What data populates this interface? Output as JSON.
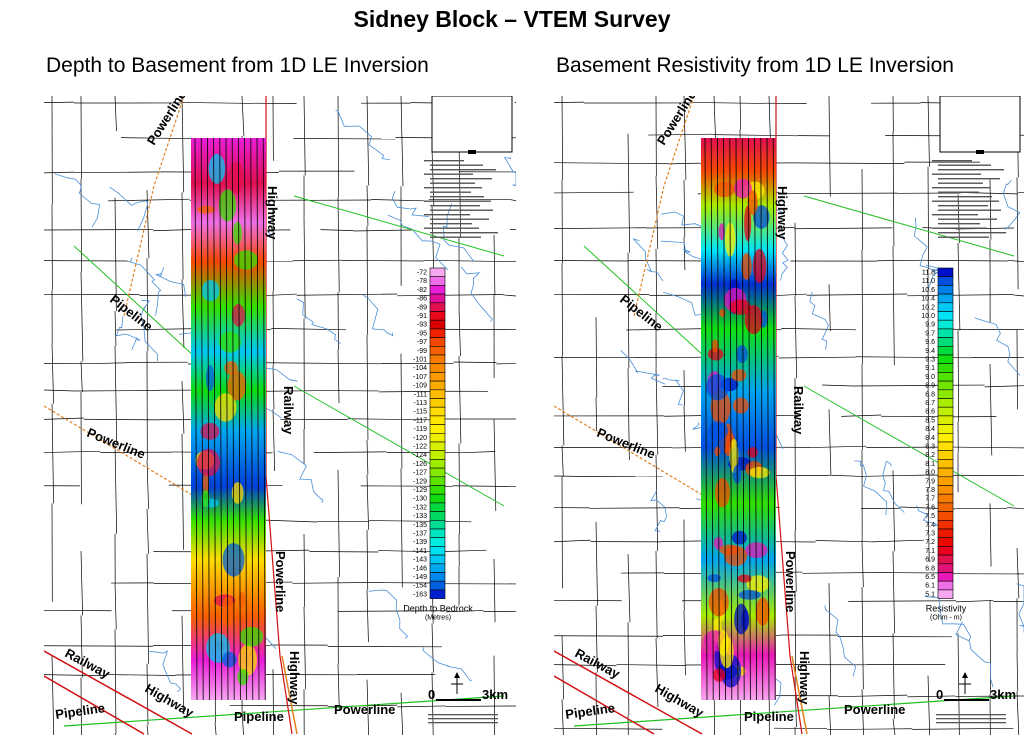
{
  "title": "Sidney Block – VTEM Survey",
  "panels": [
    {
      "subtitle": "Depth to Basement from 1D LE Inversion",
      "legend_title": "Depth to Bedrock",
      "legend_units": "(Metres)",
      "legend_values": [
        "-72",
        "-78",
        "-82",
        "-86",
        "-89",
        "-91",
        "-93",
        "-95",
        "-97",
        "-99",
        "-101",
        "-104",
        "-107",
        "-109",
        "-111",
        "-113",
        "-115",
        "-117",
        "-119",
        "-120",
        "-122",
        "-124",
        "-126",
        "-127",
        "-129",
        "-129",
        "-130",
        "-132",
        "-133",
        "-135",
        "-137",
        "-139",
        "-141",
        "-143",
        "-146",
        "-149",
        "-154",
        "-163"
      ],
      "legend_colors": [
        "#f7a8f0",
        "#f06fe8",
        "#e81ed8",
        "#e0109a",
        "#e01050",
        "#e8081c",
        "#d80000",
        "#f02000",
        "#f44800",
        "#f66000",
        "#f67a00",
        "#f88a00",
        "#fa9a00",
        "#fbab00",
        "#fcbb00",
        "#fdcc00",
        "#fedc00",
        "#ffe800",
        "#fff000",
        "#eef000",
        "#d8f000",
        "#bef000",
        "#a0ec00",
        "#84e800",
        "#5ce400",
        "#34e000",
        "#10dc10",
        "#00d840",
        "#00d860",
        "#00dc90",
        "#00e4c0",
        "#00ecdc",
        "#00e0f0",
        "#00c8f4",
        "#00a8f0",
        "#0088ec",
        "#0060e0",
        "#0020d0"
      ],
      "scale_zero": "0",
      "scale_label": "3km",
      "map_labels": [
        "Powerline",
        "Highway",
        "Pipeline",
        "Powerline",
        "Railway",
        "Powerline",
        "Highway",
        "Railway",
        "Highway",
        "Pipeline",
        "Pipeline",
        "Powerline"
      ]
    },
    {
      "subtitle": "Basement Resistivity from 1D LE Inversion",
      "legend_title": "Resistivity",
      "legend_units": "(Ohm - m)",
      "legend_values": [
        "11.8",
        "11.0",
        "10.6",
        "10.4",
        "10.2",
        "10.0",
        "9.9",
        "9.7",
        "9.6",
        "9.4",
        "9.3",
        "9.1",
        "9.0",
        "8.9",
        "8.8",
        "8.7",
        "8.6",
        "8.5",
        "8.4",
        "8.4",
        "8.3",
        "8.2",
        "8.1",
        "8.0",
        "7.9",
        "7.8",
        "7.7",
        "7.6",
        "7.5",
        "7.4",
        "7.3",
        "7.2",
        "7.1",
        "6.9",
        "6.8",
        "6.5",
        "6.1",
        "5.1"
      ],
      "legend_colors": [
        "#0010c8",
        "#0050e0",
        "#0080ec",
        "#00a4f0",
        "#00c8f4",
        "#00e4f8",
        "#00ecd8",
        "#00e4a8",
        "#00dc78",
        "#00dc40",
        "#10e010",
        "#30e000",
        "#50e400",
        "#70e400",
        "#8ce800",
        "#a8ec00",
        "#c0f000",
        "#d8f000",
        "#ecf400",
        "#fff000",
        "#ffe000",
        "#fed000",
        "#fdc000",
        "#fcb000",
        "#fba000",
        "#fa9000",
        "#f87c00",
        "#f66600",
        "#f44c00",
        "#f03000",
        "#ec1800",
        "#e80800",
        "#e8001c",
        "#e0104c",
        "#e01478",
        "#e818b8",
        "#f070e8",
        "#f7a8f0"
      ],
      "scale_zero": "0",
      "scale_label": "3km",
      "map_labels": [
        "Powerline",
        "Highway",
        "Pipeline",
        "Powerline",
        "Railway",
        "Powerline",
        "Highway",
        "Railway",
        "Highway",
        "Pipeline",
        "Pipeline",
        "Powerline"
      ]
    }
  ],
  "colors": {
    "roads": "#000000",
    "rivers": "#4a90d8",
    "pipeline": "#20c020",
    "powerline": "#e08020",
    "railway": "#d01010"
  }
}
